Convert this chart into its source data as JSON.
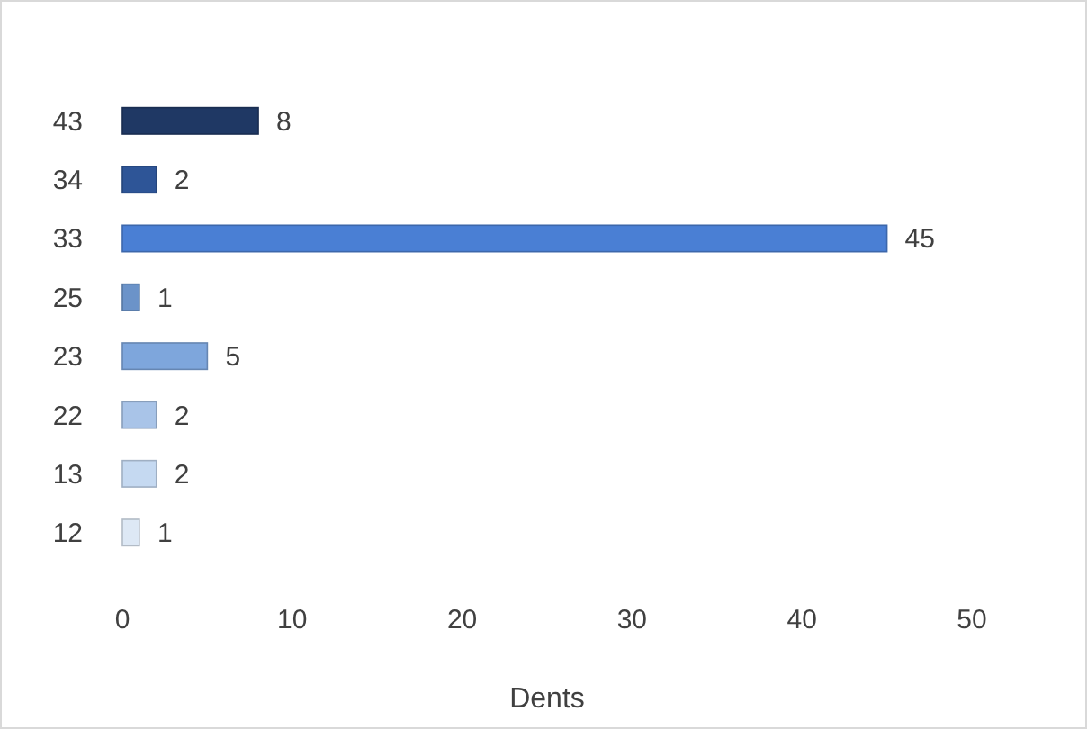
{
  "chart_data": {
    "type": "bar",
    "orientation": "horizontal",
    "categories": [
      "43",
      "34",
      "33",
      "25",
      "23",
      "22",
      "13",
      "12"
    ],
    "values": [
      8,
      2,
      45,
      1,
      5,
      2,
      2,
      1
    ],
    "colors": [
      "#1f3864",
      "#2e5597",
      "#4a7fd4",
      "#6b93c9",
      "#7ea6dc",
      "#a9c4e8",
      "#c5d9f1",
      "#dde8f5"
    ],
    "xlim": [
      0,
      50
    ],
    "xticks": [
      0,
      10,
      20,
      30,
      40,
      50
    ],
    "xlabel": "Dents",
    "data_labels": true,
    "grid": false
  }
}
